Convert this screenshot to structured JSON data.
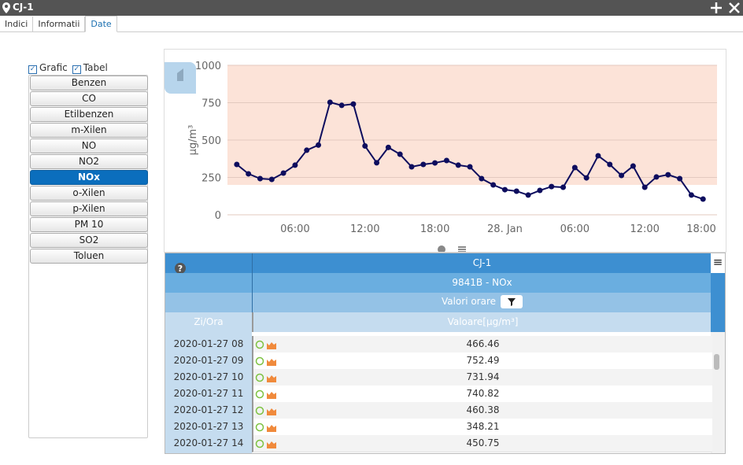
{
  "window": {
    "title": "CJ-1"
  },
  "tabs": [
    {
      "label": "Indici"
    },
    {
      "label": "Informatii"
    },
    {
      "label": "Date",
      "active": true
    }
  ],
  "options": [
    {
      "label": "Grafic",
      "checked": true
    },
    {
      "label": "Tabel",
      "checked": true
    }
  ],
  "pollutants": [
    {
      "label": "Benzen"
    },
    {
      "label": "CO"
    },
    {
      "label": "Etilbenzen"
    },
    {
      "label": "m-Xilen"
    },
    {
      "label": "NO"
    },
    {
      "label": "NO2"
    },
    {
      "label": "NOx",
      "active": true
    },
    {
      "label": "o-Xilen"
    },
    {
      "label": "p-Xilen"
    },
    {
      "label": "PM 10"
    },
    {
      "label": "SO2"
    },
    {
      "label": "Toluen"
    }
  ],
  "chart_data": {
    "type": "line",
    "y_label": "µg/m³",
    "x": [
      1,
      2,
      3,
      4,
      5,
      6,
      7,
      8,
      9,
      10,
      11,
      12,
      13,
      14,
      15,
      16,
      17,
      18,
      19,
      20,
      21,
      22,
      23,
      24,
      25,
      26,
      27,
      28,
      29,
      30,
      31,
      32,
      33,
      34,
      35,
      36,
      37,
      38,
      39,
      40,
      41
    ],
    "series": [
      {
        "name": "NOx",
        "color": "#0d0d5e",
        "values": [
          337,
          274,
          242,
          237,
          279,
          332,
          432,
          466.46,
          752.49,
          731.94,
          740.82,
          460.38,
          348.21,
          450.75,
          405,
          321,
          337,
          347,
          363,
          332,
          321,
          242,
          200,
          168,
          158,
          132,
          163,
          189,
          184,
          316,
          247,
          395,
          337,
          263,
          326,
          184,
          253,
          268,
          242,
          132,
          105
        ]
      }
    ],
    "xlim": [
      0.2,
      42.2
    ],
    "xticks": [
      {
        "value": 6,
        "label": "06:00"
      },
      {
        "value": 12,
        "label": "12:00"
      },
      {
        "value": 18,
        "label": "18:00"
      },
      {
        "value": 24,
        "label": "28. Jan"
      },
      {
        "value": 30,
        "label": "06:00"
      },
      {
        "value": 36,
        "label": "12:00"
      },
      {
        "value": 42,
        "label": "18:00"
      }
    ],
    "ylim": [
      0,
      1000
    ],
    "yticks": [
      0,
      250,
      500,
      750,
      1000
    ],
    "grid": true,
    "plot_band": {
      "from": 200,
      "to": 1000,
      "color": "#fce3d8"
    }
  },
  "table": {
    "title": "CJ-1",
    "subtitle": "9841B - NOx",
    "caption": "Valori orare",
    "columns": [
      "Zi/Ora",
      "Valoare[µg/m³]"
    ],
    "rows": [
      [
        "2020-01-27 08",
        "466.46"
      ],
      [
        "2020-01-27 09",
        "752.49"
      ],
      [
        "2020-01-27 10",
        "731.94"
      ],
      [
        "2020-01-27 11",
        "740.82"
      ],
      [
        "2020-01-27 12",
        "460.38"
      ],
      [
        "2020-01-27 13",
        "348.21"
      ],
      [
        "2020-01-27 14",
        "450.75"
      ]
    ]
  }
}
